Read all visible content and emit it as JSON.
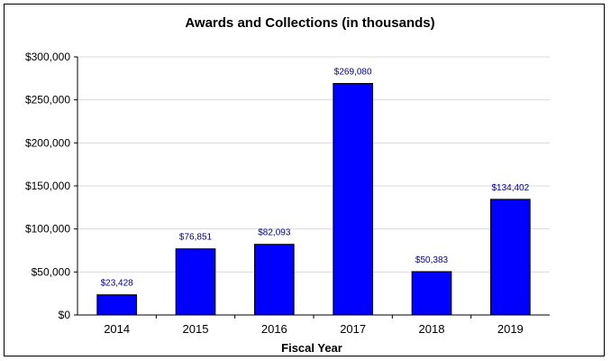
{
  "chart_data": {
    "type": "bar",
    "title": "Awards and Collections (in thousands)",
    "xlabel": "Fiscal Year",
    "ylabel": "",
    "categories": [
      "2014",
      "2015",
      "2016",
      "2017",
      "2018",
      "2019"
    ],
    "values": [
      23428,
      76851,
      82093,
      269080,
      50383,
      134402
    ],
    "value_labels": [
      "$23,428",
      "$76,851",
      "$82,093",
      "$269,080",
      "$50,383",
      "$134,402"
    ],
    "ylim": [
      0,
      300000
    ],
    "yticks": [
      0,
      50000,
      100000,
      150000,
      200000,
      250000,
      300000
    ],
    "ytick_labels": [
      "$0",
      "$50,000",
      "$100,000",
      "$150,000",
      "$200,000",
      "$250,000",
      "$300,000"
    ],
    "grid": true,
    "legend": "none",
    "colors": {
      "bar": "#0000ff",
      "bar_stroke": "#000000",
      "value_label": "#000080",
      "grid": "#d9d9d9",
      "axis": "#000000"
    }
  }
}
